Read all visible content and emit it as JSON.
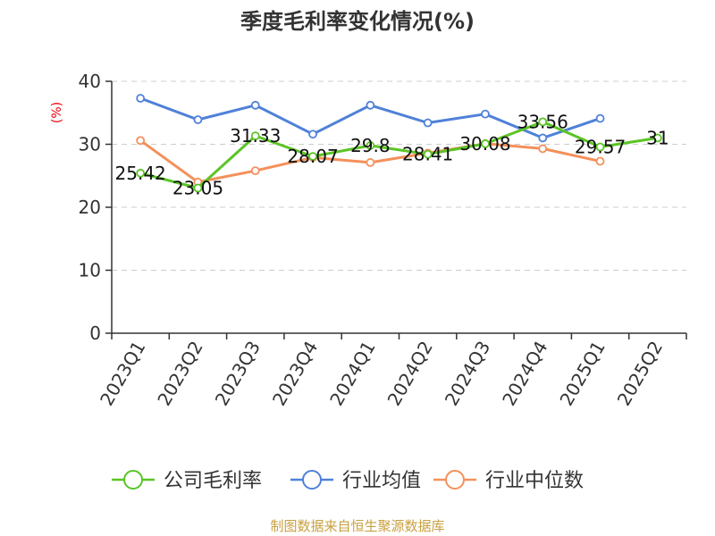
{
  "chart_data": {
    "type": "line",
    "title": "季度毛利率变化情况(%)",
    "ylabel": "(%)",
    "ylim": [
      0,
      40
    ],
    "yticks": [
      0,
      10,
      20,
      30,
      40
    ],
    "grid": true,
    "legend_position": "bottom",
    "categories": [
      "2023Q1",
      "2023Q2",
      "2023Q3",
      "2023Q4",
      "2024Q1",
      "2024Q2",
      "2024Q3",
      "2024Q4",
      "2025Q1",
      "2025Q2"
    ],
    "series": [
      {
        "name": "公司毛利率",
        "color": "#5bc425",
        "values": [
          25.42,
          23.05,
          31.33,
          28.07,
          29.8,
          28.41,
          30.08,
          33.56,
          29.57,
          31
        ],
        "labels": [
          "25.42",
          "23.05",
          "31.33",
          "28.07",
          "29.8",
          "28.41",
          "30.08",
          "33.56",
          "29.57",
          "31"
        ]
      },
      {
        "name": "行业均值",
        "color": "#4f81d9",
        "values": [
          37.3,
          33.9,
          36.2,
          31.6,
          36.2,
          33.4,
          34.8,
          31.0,
          34.1,
          null
        ]
      },
      {
        "name": "行业中位数",
        "color": "#f4905a",
        "values": [
          30.6,
          24.0,
          25.8,
          27.9,
          27.1,
          28.6,
          30.1,
          29.3,
          27.3,
          null
        ]
      }
    ]
  },
  "source": "制图数据来自恒生聚源数据库"
}
